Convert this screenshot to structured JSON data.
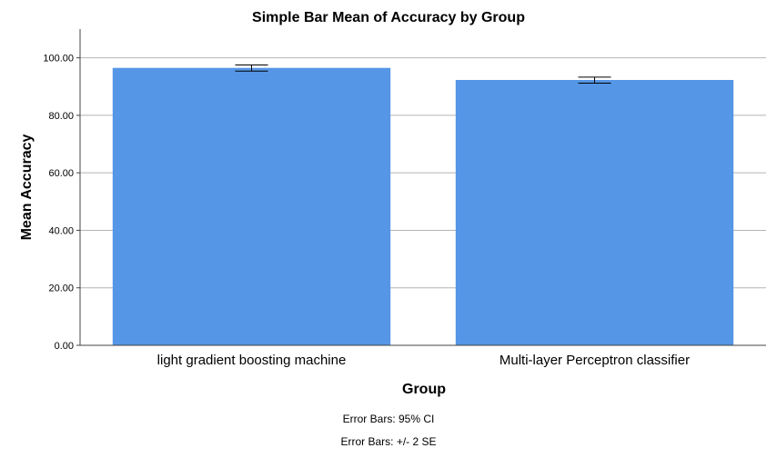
{
  "chart_data": {
    "type": "bar",
    "title": "Simple Bar Mean of Accuracy by Group",
    "xlabel": "Group",
    "ylabel": "Mean Accuracy",
    "categories": [
      "light gradient boosting machine",
      "Multi-layer Perceptron classifier"
    ],
    "values": [
      96.5,
      92.3
    ],
    "error_low": [
      95.4,
      91.2
    ],
    "error_high": [
      97.5,
      93.3
    ],
    "ylim": [
      0,
      110
    ],
    "yticks": [
      "0.00",
      "20.00",
      "40.00",
      "60.00",
      "80.00",
      "100.00"
    ],
    "grid": true,
    "bar_color": "#5596e6",
    "notes": [
      "Error Bars: 95% CI",
      "Error Bars: +/- 2 SE"
    ]
  }
}
